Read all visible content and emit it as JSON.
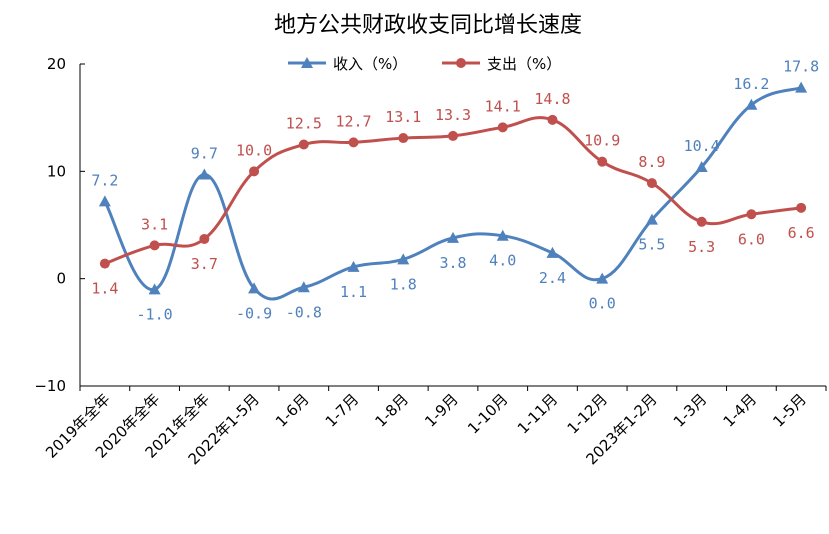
{
  "chart_data": {
    "type": "line",
    "title": "地方公共财政收支同比增长速度",
    "categories": [
      "2019年全年",
      "2020年全年",
      "2021年全年",
      "2022年1-5月",
      "1-6月",
      "1-7月",
      "1-8月",
      "1-9月",
      "1-10月",
      "1-11月",
      "1-12月",
      "2023年1-2月",
      "1-3月",
      "1-4月",
      "1-5月"
    ],
    "series": [
      {
        "name": "收入（%）",
        "color": "#4f81bd",
        "marker": "triangle",
        "values": [
          7.2,
          -1.0,
          9.7,
          -0.9,
          -0.8,
          1.1,
          1.8,
          3.8,
          4.0,
          2.4,
          0.0,
          5.5,
          10.4,
          16.2,
          17.8
        ],
        "labels": [
          "7.2",
          "-1.0",
          "9.7",
          "-0.9",
          "-0.8",
          "1.1",
          "1.8",
          "3.8",
          "4.0",
          "2.4",
          "0.0",
          "5.5",
          "10.4",
          "16.2",
          "17.8"
        ]
      },
      {
        "name": "支出（%）",
        "color": "#c0504d",
        "marker": "circle",
        "values": [
          1.4,
          3.1,
          3.7,
          10.0,
          12.5,
          12.7,
          13.1,
          13.3,
          14.1,
          14.8,
          10.9,
          8.9,
          5.3,
          6.0,
          6.6
        ],
        "labels": [
          "1.4",
          "3.1",
          "3.7",
          "10.0",
          "12.5",
          "12.7",
          "13.1",
          "13.3",
          "14.1",
          "14.8",
          "10.9",
          "8.9",
          "5.3",
          "6.0",
          "6.6"
        ]
      }
    ],
    "yticks": [
      "20",
      "10",
      "0",
      "−10"
    ],
    "ytick_values": [
      20,
      10,
      0,
      -10
    ],
    "ylim": [
      -10,
      20
    ],
    "grid": false,
    "legend_position": "top-center",
    "xlabel": "",
    "ylabel": ""
  }
}
